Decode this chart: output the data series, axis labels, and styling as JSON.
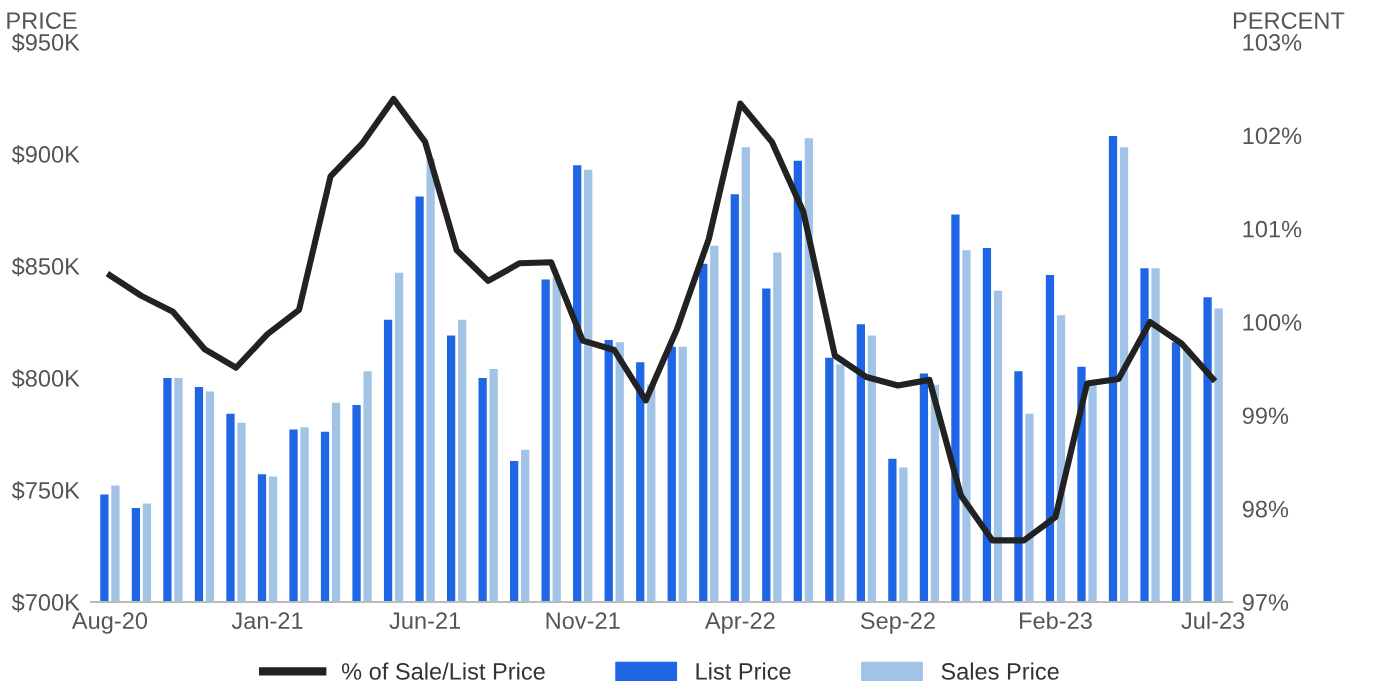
{
  "chart_data": {
    "type": "bar",
    "categories": [
      "Aug-20",
      null,
      null,
      null,
      null,
      "Jan-21",
      null,
      null,
      null,
      null,
      "Jun-21",
      null,
      null,
      null,
      null,
      "Nov-21",
      null,
      null,
      null,
      null,
      "Apr-22",
      null,
      null,
      null,
      null,
      "Sep-22",
      null,
      null,
      null,
      null,
      "Feb-23",
      null,
      null,
      null,
      null,
      "Jul-23"
    ],
    "series": [
      {
        "name": "% of Sale/List Price",
        "type": "line",
        "axis": "y2",
        "color": "#222222",
        "values": [
          100.5,
          100.28,
          100.11,
          99.71,
          99.51,
          99.87,
          100.13,
          101.56,
          101.91,
          102.39,
          101.93,
          100.77,
          100.44,
          100.63,
          100.64,
          99.8,
          99.7,
          99.16,
          99.93,
          100.89,
          102.34,
          101.93,
          101.18,
          99.64,
          99.41,
          99.32,
          99.38,
          98.14,
          97.66,
          97.66,
          97.91,
          99.34,
          99.39,
          100.0,
          99.77,
          99.39
        ]
      },
      {
        "name": "List Price",
        "color": "#1f66e5",
        "values": [
          748,
          742,
          800,
          796,
          784,
          757,
          777,
          776,
          788,
          826,
          881,
          819,
          800,
          763,
          844,
          895,
          817,
          807,
          814,
          851,
          882,
          840,
          897,
          809,
          824,
          764,
          802,
          873,
          858,
          803,
          846,
          805,
          908,
          849,
          816,
          836
        ]
      },
      {
        "name": "Sales Price",
        "color": "#a0c3e6",
        "values": [
          752,
          744,
          800,
          794,
          780,
          756,
          778,
          789,
          803,
          847,
          898,
          826,
          804,
          768,
          845,
          893,
          816,
          797,
          814,
          859,
          903,
          856,
          907,
          806,
          819,
          760,
          797,
          857,
          839,
          784,
          828,
          799,
          903,
          849,
          813,
          831
        ]
      }
    ],
    "ylabel": "PRICE",
    "y2label": "PERCENT",
    "ylim": [
      700,
      950
    ],
    "yticks": [
      {
        "value": 700,
        "label": "$700K"
      },
      {
        "value": 750,
        "label": "$750K"
      },
      {
        "value": 800,
        "label": "$800K"
      },
      {
        "value": 850,
        "label": "$850K"
      },
      {
        "value": 900,
        "label": "$900K"
      },
      {
        "value": 950,
        "label": "$950K"
      }
    ],
    "y2lim": [
      97,
      103
    ],
    "y2ticks": [
      {
        "value": 97,
        "label": "97%"
      },
      {
        "value": 98,
        "label": "98%"
      },
      {
        "value": 99,
        "label": "99%"
      },
      {
        "value": 100,
        "label": "100%"
      },
      {
        "value": 101,
        "label": "101%"
      },
      {
        "value": 102,
        "label": "102%"
      },
      {
        "value": 103,
        "label": "103%"
      }
    ],
    "legend": "bottom",
    "grid": false,
    "marker": "none",
    "line_style": "solid"
  }
}
